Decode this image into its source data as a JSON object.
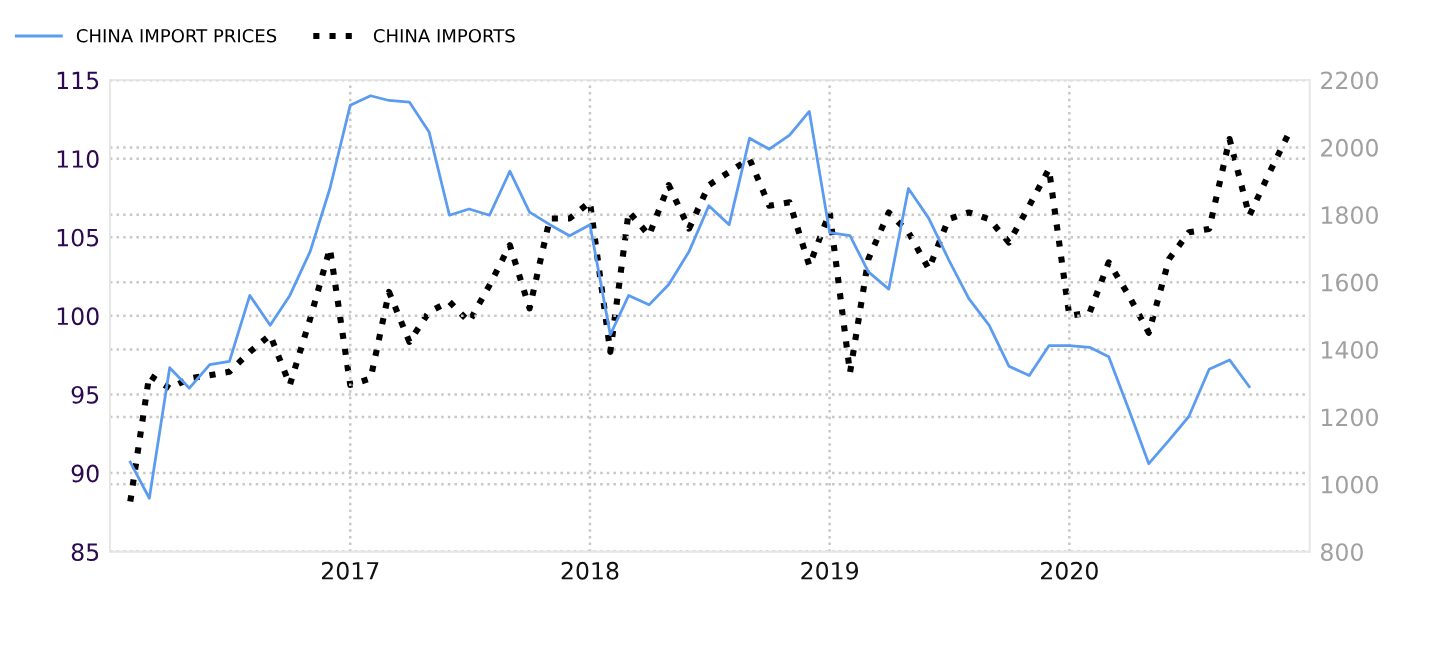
{
  "chart_data": {
    "type": "line",
    "legend": "top left",
    "grid": true,
    "xlim": [
      "2016-01",
      "2021-01"
    ],
    "xticks": [
      "2017",
      "2018",
      "2019",
      "2020"
    ],
    "ylim": [
      85,
      115
    ],
    "yticks": [
      85,
      90,
      95,
      100,
      105,
      110,
      115
    ],
    "y2lim": [
      800,
      2200
    ],
    "y2ticks": [
      800,
      1000,
      1200,
      1400,
      1600,
      1800,
      2000,
      2200
    ],
    "series": [
      {
        "name": "CHINA IMPORT PRICES",
        "color": "#5b9bf0",
        "line_style": "solid",
        "x": [
          "2016-02",
          "2016-03",
          "2016-04",
          "2016-05",
          "2016-06",
          "2016-07",
          "2016-08",
          "2016-09",
          "2016-10",
          "2016-11",
          "2016-12",
          "2017-01",
          "2017-02",
          "2017-03",
          "2017-04",
          "2017-05",
          "2017-06",
          "2017-07",
          "2017-08",
          "2017-09",
          "2017-10",
          "2017-11",
          "2017-12",
          "2018-01",
          "2018-02",
          "2018-03",
          "2018-04",
          "2018-05",
          "2018-06",
          "2018-07",
          "2018-08",
          "2018-09",
          "2018-10",
          "2018-11",
          "2018-12",
          "2019-01",
          "2019-02",
          "2019-03",
          "2019-04",
          "2019-05",
          "2019-06",
          "2019-07",
          "2019-08",
          "2019-09",
          "2019-10",
          "2019-11",
          "2019-12",
          "2020-01",
          "2020-02",
          "2020-03",
          "2020-04",
          "2020-05",
          "2020-06",
          "2020-07",
          "2020-08",
          "2020-09",
          "2020-10"
        ],
        "values": [
          90.7,
          88.4,
          96.7,
          95.4,
          96.9,
          97.1,
          101.3,
          99.4,
          101.3,
          104.1,
          108.1,
          113.4,
          114.0,
          113.7,
          113.6,
          111.7,
          106.4,
          106.8,
          106.4,
          109.2,
          106.6,
          105.8,
          105.1,
          105.8,
          98.8,
          101.3,
          100.7,
          102.0,
          104.1,
          107.0,
          105.8,
          111.3,
          110.6,
          111.5,
          113.0,
          105.3,
          105.1,
          102.8,
          101.7,
          108.1,
          106.2,
          103.6,
          101.1,
          99.4,
          96.8,
          96.2,
          98.1,
          98.1,
          98.0,
          97.4,
          94.0,
          90.6,
          92.1,
          93.6,
          96.6,
          97.2,
          95.5
        ]
      },
      {
        "name": "CHINA IMPORTS",
        "color": "#000000",
        "line_style": "dotted",
        "axis": "y2",
        "x": [
          "2016-02",
          "2016-03",
          "2016-04",
          "2016-05",
          "2016-06",
          "2016-07",
          "2016-08",
          "2016-09",
          "2016-10",
          "2016-11",
          "2016-12",
          "2017-01",
          "2017-02",
          "2017-03",
          "2017-04",
          "2017-05",
          "2017-06",
          "2017-07",
          "2017-08",
          "2017-09",
          "2017-10",
          "2017-11",
          "2017-12",
          "2018-01",
          "2018-02",
          "2018-03",
          "2018-04",
          "2018-05",
          "2018-06",
          "2018-07",
          "2018-08",
          "2018-09",
          "2018-10",
          "2018-11",
          "2018-12",
          "2019-01",
          "2019-02",
          "2019-03",
          "2019-04",
          "2019-05",
          "2019-06",
          "2019-07",
          "2019-08",
          "2019-09",
          "2019-10",
          "2019-11",
          "2019-12",
          "2020-01",
          "2020-02",
          "2020-03",
          "2020-04",
          "2020-05",
          "2020-06",
          "2020-07",
          "2020-08",
          "2020-09",
          "2020-10",
          "2020-11",
          "2020-12"
        ],
        "values": [
          949,
          1324,
          1285,
          1314,
          1324,
          1334,
          1393,
          1443,
          1295,
          1492,
          1700,
          1295,
          1314,
          1571,
          1423,
          1512,
          1542,
          1482,
          1591,
          1710,
          1522,
          1789,
          1789,
          1838,
          1393,
          1809,
          1739,
          1888,
          1759,
          1888,
          1927,
          1966,
          1827,
          1837,
          1649,
          1807,
          1331,
          1669,
          1807,
          1748,
          1639,
          1787,
          1807,
          1787,
          1718,
          1827,
          1936,
          1500,
          1510,
          1659,
          1559,
          1450,
          1669,
          1748,
          1758,
          2025,
          1797,
          1926,
          2045
        ]
      }
    ]
  }
}
